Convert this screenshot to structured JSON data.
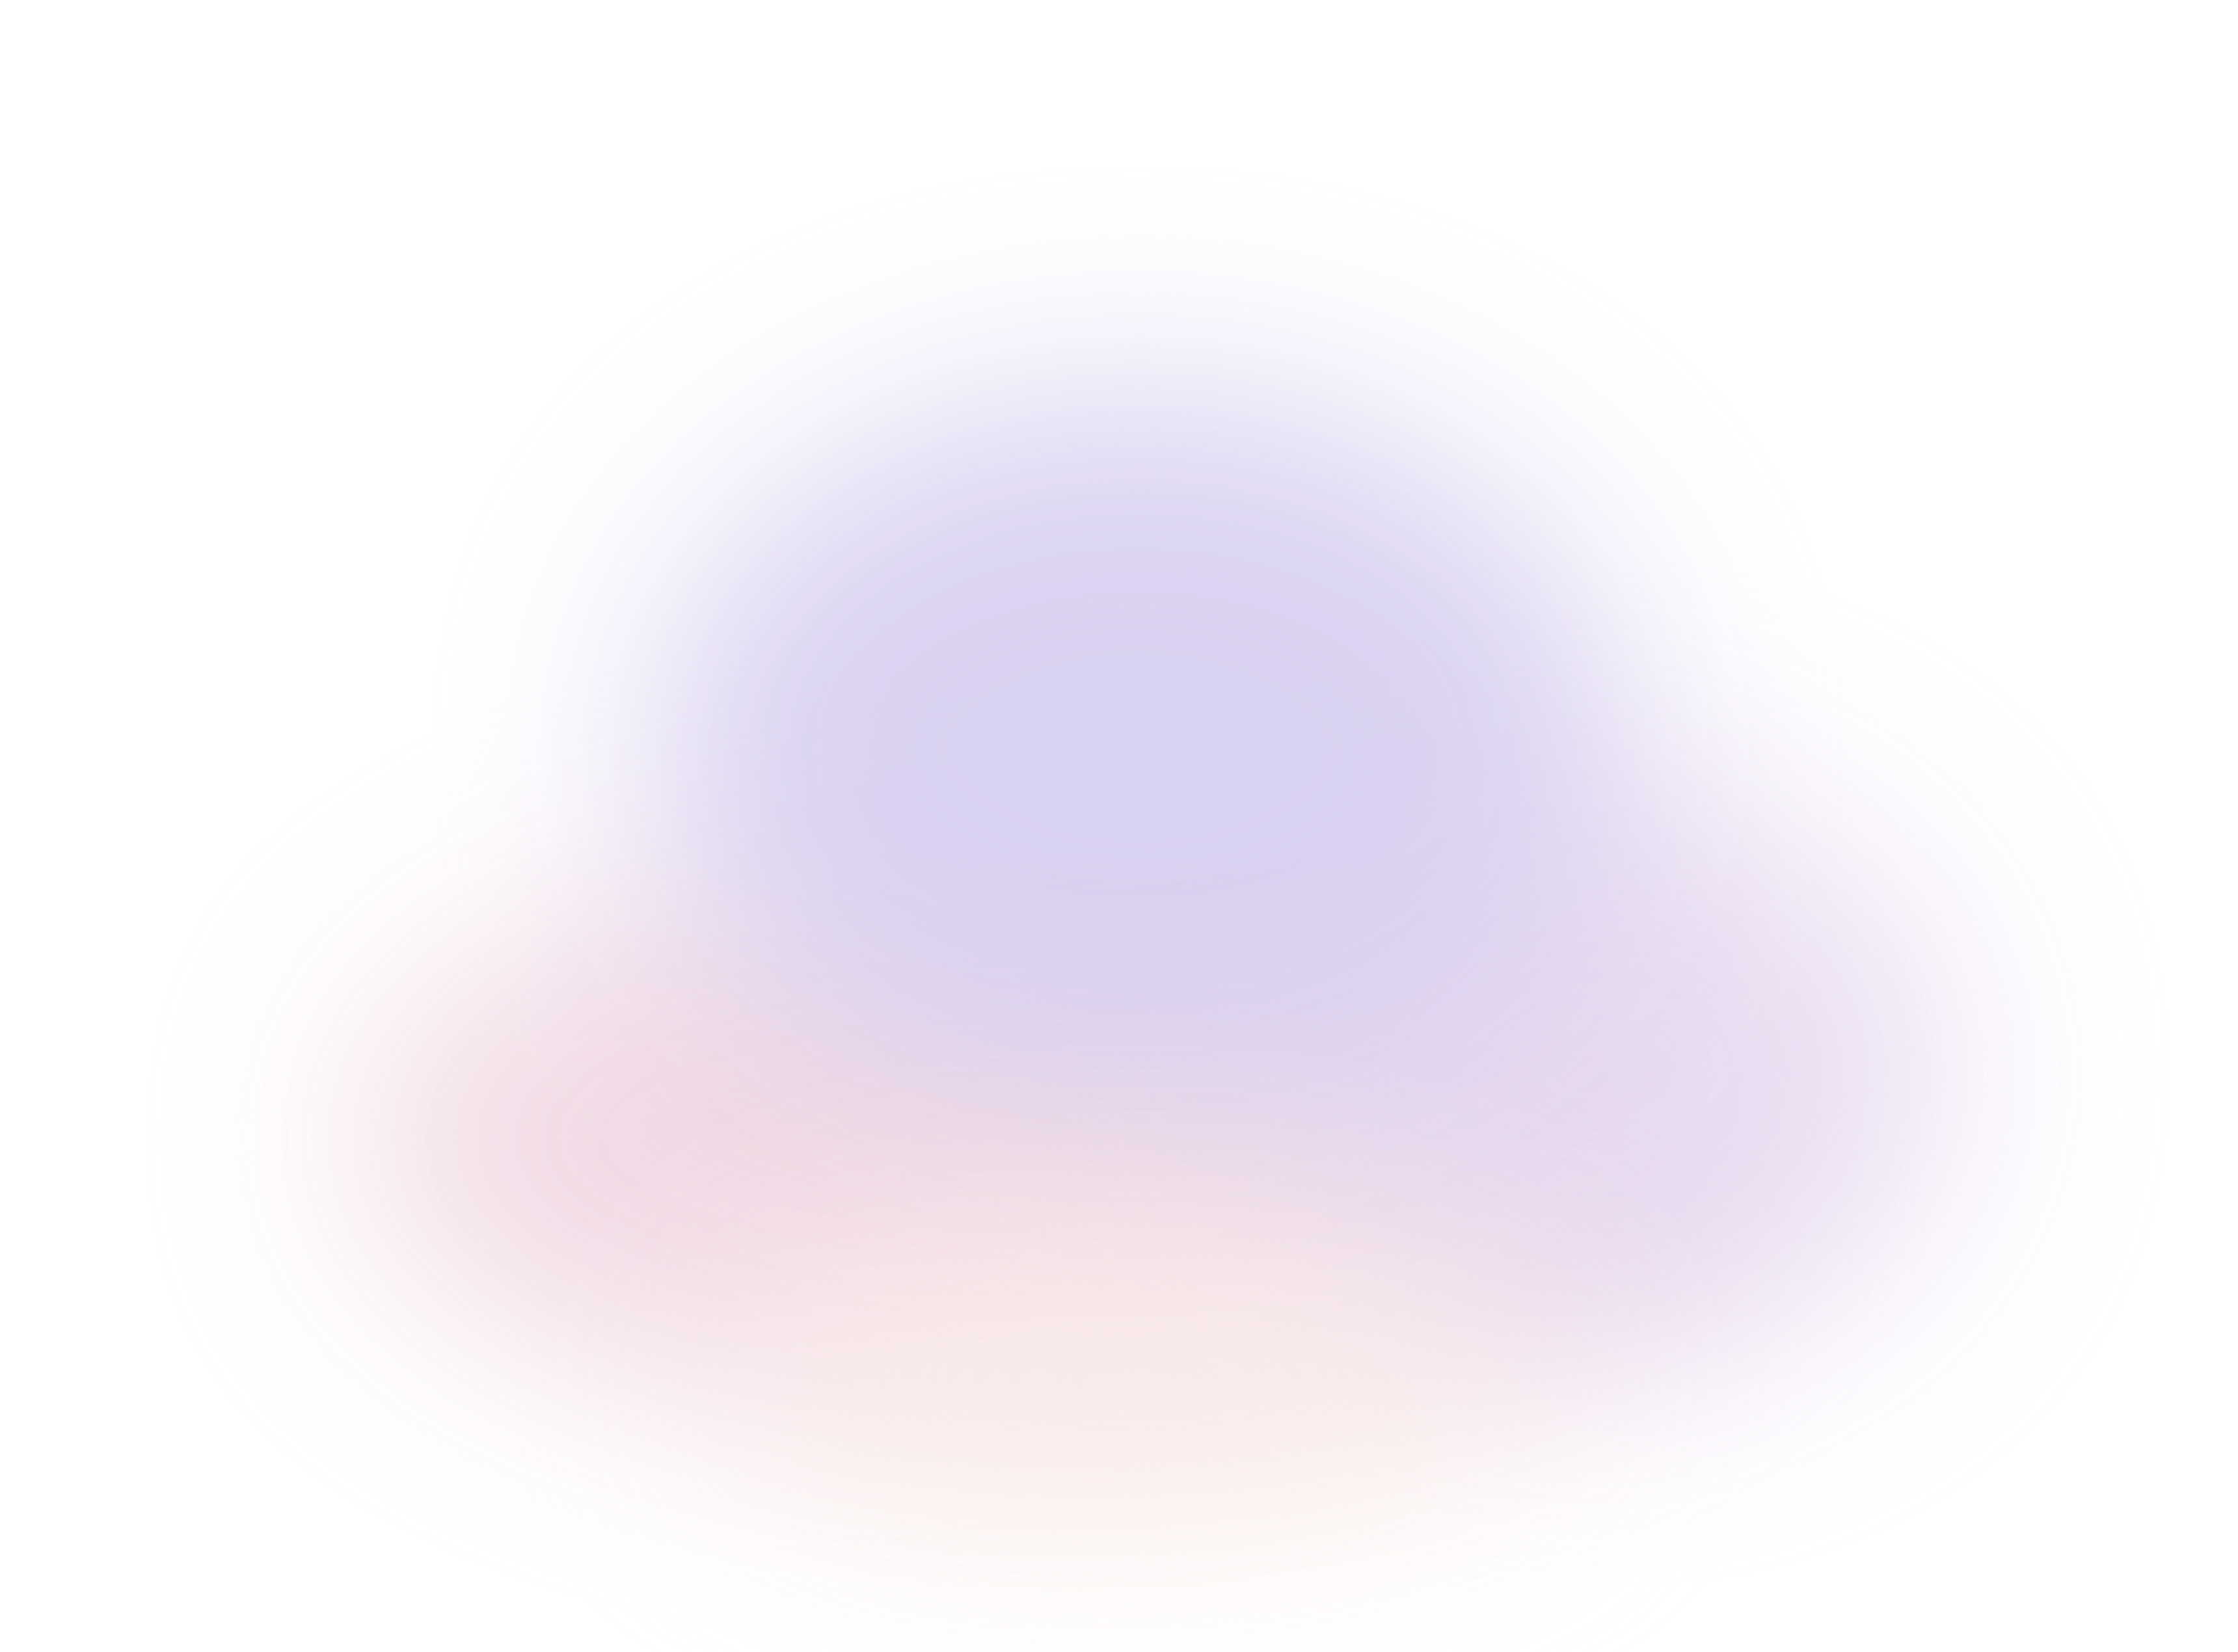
{
  "background": {
    "base_color": "#ffffff",
    "gradient_colors": {
      "lavender": "#d8d0f0",
      "pink": "#f0d6e2",
      "violet": "#e6d8f0",
      "peach": "#fbeeea"
    }
  }
}
